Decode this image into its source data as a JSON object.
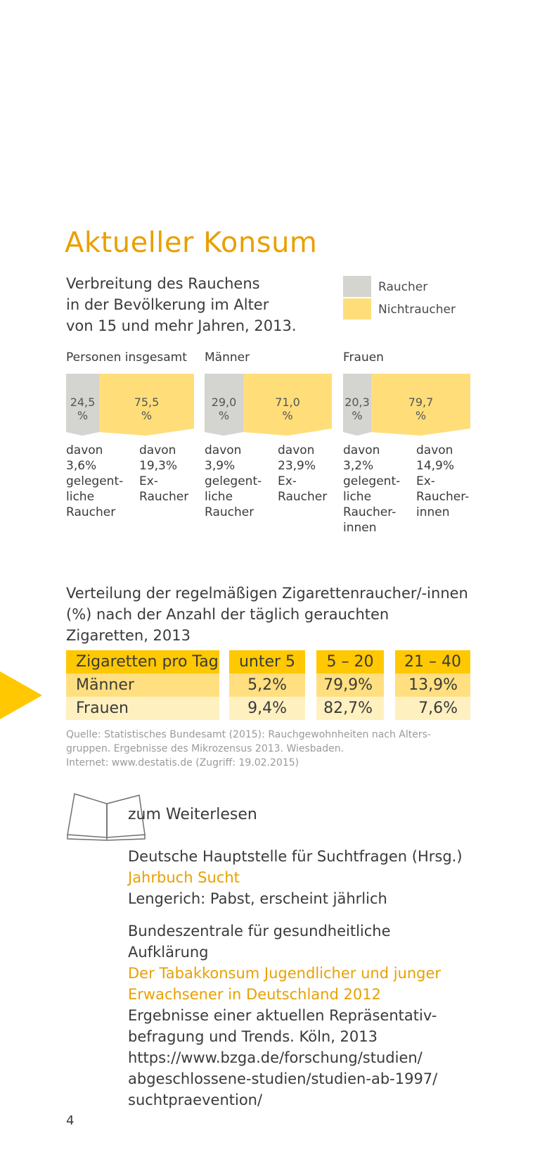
{
  "title": "Aktueller Konsum",
  "intro_lines": [
    "Verbreitung des Rauchens",
    "in der Bevölkerung im Alter",
    "von 15 und mehr Jahren, 2013."
  ],
  "legend": {
    "smoker": "Raucher",
    "nonsmoker": "Nichtraucher"
  },
  "colors": {
    "accent": "#e8a000",
    "smoker": "#d4d4d0",
    "nonsmoker": "#ffde7a",
    "table_header": "#ffc800",
    "table_row1": "#ffdf80",
    "table_row2": "#fff0c0",
    "arrow": "#ffc800"
  },
  "groups": [
    {
      "name": "Personen insgesamt",
      "smoker_value": "24,5",
      "nonsmoker_value": "75,5",
      "unit": "%",
      "smoker_share": 24.5,
      "smoker_note": [
        "davon",
        "3,6%",
        "gelegent-",
        "liche",
        "Raucher"
      ],
      "nonsmoker_note": [
        "davon",
        "19,3%",
        "Ex-",
        "Raucher"
      ]
    },
    {
      "name": "Männer",
      "smoker_value": "29,0",
      "nonsmoker_value": "71,0",
      "unit": "%",
      "smoker_share": 29.0,
      "smoker_note": [
        "davon",
        "3,9%",
        "gelegent-",
        "liche",
        "Raucher"
      ],
      "nonsmoker_note": [
        "davon",
        "23,9%",
        "Ex-",
        "Raucher"
      ]
    },
    {
      "name": "Frauen",
      "smoker_value": "20,3",
      "nonsmoker_value": "79,7",
      "unit": "%",
      "smoker_share": 20.3,
      "smoker_note": [
        "davon",
        "3,2%",
        "gelegent-",
        "liche",
        "Raucher-",
        "innen"
      ],
      "nonsmoker_note": [
        "davon",
        "14,9%",
        "Ex-",
        "Raucher-",
        "innen"
      ]
    }
  ],
  "distribution": {
    "title_lines": [
      "Verteilung der regelmäßigen Zigarettenraucher/-innen",
      "(%) nach der Anzahl der täglich gerauchten",
      "Zigaretten, 2013"
    ],
    "header": [
      "Zigaretten pro Tag",
      "unter 5",
      "5 – 20",
      "21 – 40"
    ],
    "rows": [
      [
        "Männer",
        "5,2%",
        "79,9%",
        "13,9%"
      ],
      [
        "Frauen",
        "9,4%",
        "82,7%",
        "7,6%"
      ]
    ]
  },
  "source_lines": [
    "Quelle: Statistisches Bundesamt (2015): Rauchgewohnheiten nach Alters-",
    "gruppen. Ergebnisse des Mikrozensus 2013. Wiesbaden.",
    "Internet: www.destatis.de (Zugriff: 19.02.2015)"
  ],
  "further_reading": {
    "heading": "zum Weiterlesen",
    "icon": "open-book-icon",
    "refs": [
      {
        "author_lines": [
          "Deutsche Hauptstelle für Suchtfragen (Hrsg.)"
        ],
        "title_lines": [
          "Jahrbuch Sucht"
        ],
        "detail_lines": [
          "Lengerich: Pabst, erscheint jährlich"
        ]
      },
      {
        "author_lines": [
          "Bundeszentrale für gesundheitliche",
          "Aufklärung"
        ],
        "title_lines": [
          "Der Tabakkonsum Jugendlicher und junger",
          "Erwachsener in Deutschland 2012"
        ],
        "detail_lines": [
          "Ergebnisse einer aktuellen Repräsentativ-",
          "befragung und Trends. Köln, 2013",
          "https://www.bzga.de/forschung/studien/",
          "abgeschlossene-studien/studien-ab-1997/",
          "suchtpraevention/"
        ]
      }
    ]
  },
  "page_number": "4"
}
